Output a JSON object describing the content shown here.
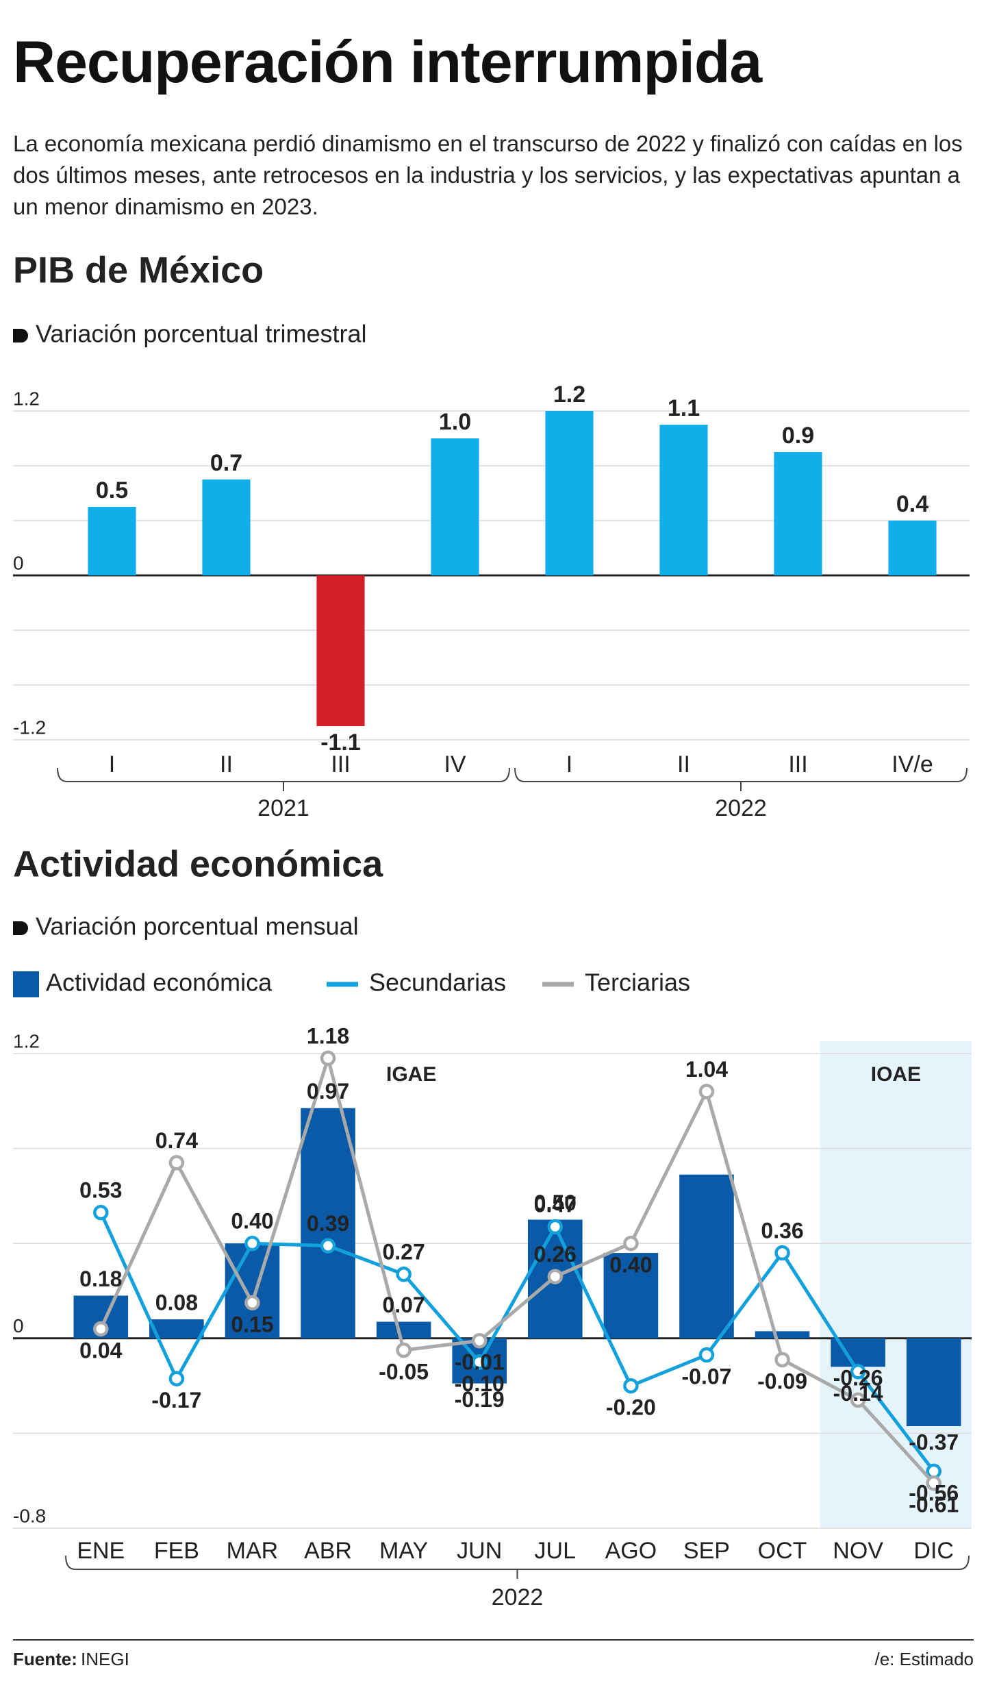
{
  "header": {
    "title": "Recuperación interrumpida",
    "subtitle": "La economía mexicana perdió dinamismo en el transcurso de 2022 y finalizó con caídas en los dos últimos meses, ante retrocesos en la industria y los servicios, y las expectativas apuntan a un menor dinamismo en 2023."
  },
  "chart_data": [
    {
      "type": "bar",
      "title": "PIB de México",
      "subtitle": "Variación porcentual trimestral",
      "categories": [
        "I",
        "II",
        "III",
        "IV",
        "I",
        "II",
        "III",
        "IV/e"
      ],
      "groups": [
        {
          "name": "2021",
          "count": 4
        },
        {
          "name": "2022",
          "count": 4
        }
      ],
      "values": [
        0.5,
        0.7,
        -1.1,
        1.0,
        1.2,
        1.1,
        0.9,
        0.4
      ],
      "value_labels": [
        "0.5",
        "0.7",
        "-1.1",
        "1.0",
        "1.2",
        "1.1",
        "0.9",
        "0.4"
      ],
      "color": "#12aee9",
      "negative_color": "#d2202a",
      "ylim": [
        -1.2,
        1.2
      ],
      "yticks": [
        -1.2,
        0,
        1.2
      ],
      "minor_yticks": [
        -0.8,
        -0.4,
        0.4,
        0.8
      ]
    },
    {
      "type": "bar_line",
      "title": "Actividad económica",
      "subtitle": "Variación porcentual mensual",
      "categories": [
        "ENE",
        "FEB",
        "MAR",
        "ABR",
        "MAY",
        "JUN",
        "JUL",
        "AGO",
        "SEP",
        "OCT",
        "NOV",
        "DIC"
      ],
      "groups": [
        {
          "name": "2022",
          "count": 12
        }
      ],
      "series": [
        {
          "name": "Actividad económica",
          "type": "bar",
          "color": "#0a5aa8",
          "values": [
            0.18,
            0.08,
            0.4,
            0.97,
            0.07,
            -0.19,
            0.5,
            0.36,
            0.69,
            0.03,
            -0.12,
            -0.37
          ],
          "value_labels": [
            "0.18",
            "0.08",
            null,
            "0.97",
            "0.07",
            "-0.19",
            "0.50",
            null,
            null,
            null,
            null,
            "-0.37"
          ]
        },
        {
          "name": "Secundarias",
          "type": "line",
          "color": "#12a1dc",
          "values": [
            0.53,
            -0.17,
            0.4,
            0.39,
            0.27,
            -0.1,
            0.47,
            -0.2,
            -0.07,
            0.36,
            -0.14,
            -0.56
          ],
          "value_labels": [
            "0.53",
            "-0.17",
            "0.40",
            "0.39",
            "0.27",
            "-0.10",
            "0.47",
            "-0.20",
            "-0.07",
            "0.36",
            "-0.14",
            "-0.56"
          ]
        },
        {
          "name": "Terciarias",
          "type": "line",
          "color": "#a9a9a9",
          "values": [
            0.04,
            0.74,
            0.15,
            1.18,
            -0.05,
            -0.01,
            0.26,
            0.4,
            1.04,
            -0.09,
            -0.26,
            -0.61
          ],
          "value_labels": [
            "0.04",
            "0.74",
            "0.15",
            "1.18",
            "-0.05",
            "-0.01",
            "0.26",
            "0.40",
            "1.04",
            "-0.09",
            "-0.26",
            "-0.61"
          ]
        }
      ],
      "ylim": [
        -0.8,
        1.2
      ],
      "yticks": [
        -0.8,
        0,
        1.2
      ],
      "minor_yticks": [
        -0.4,
        0.4,
        0.8
      ],
      "annotations": [
        {
          "text": "IGAE"
        }
      ],
      "highlight": {
        "label": "IOAE",
        "from_index": 10
      }
    }
  ],
  "footer": {
    "source_label": "Fuente:",
    "source": "INEGI",
    "note": "/e: Estimado"
  }
}
